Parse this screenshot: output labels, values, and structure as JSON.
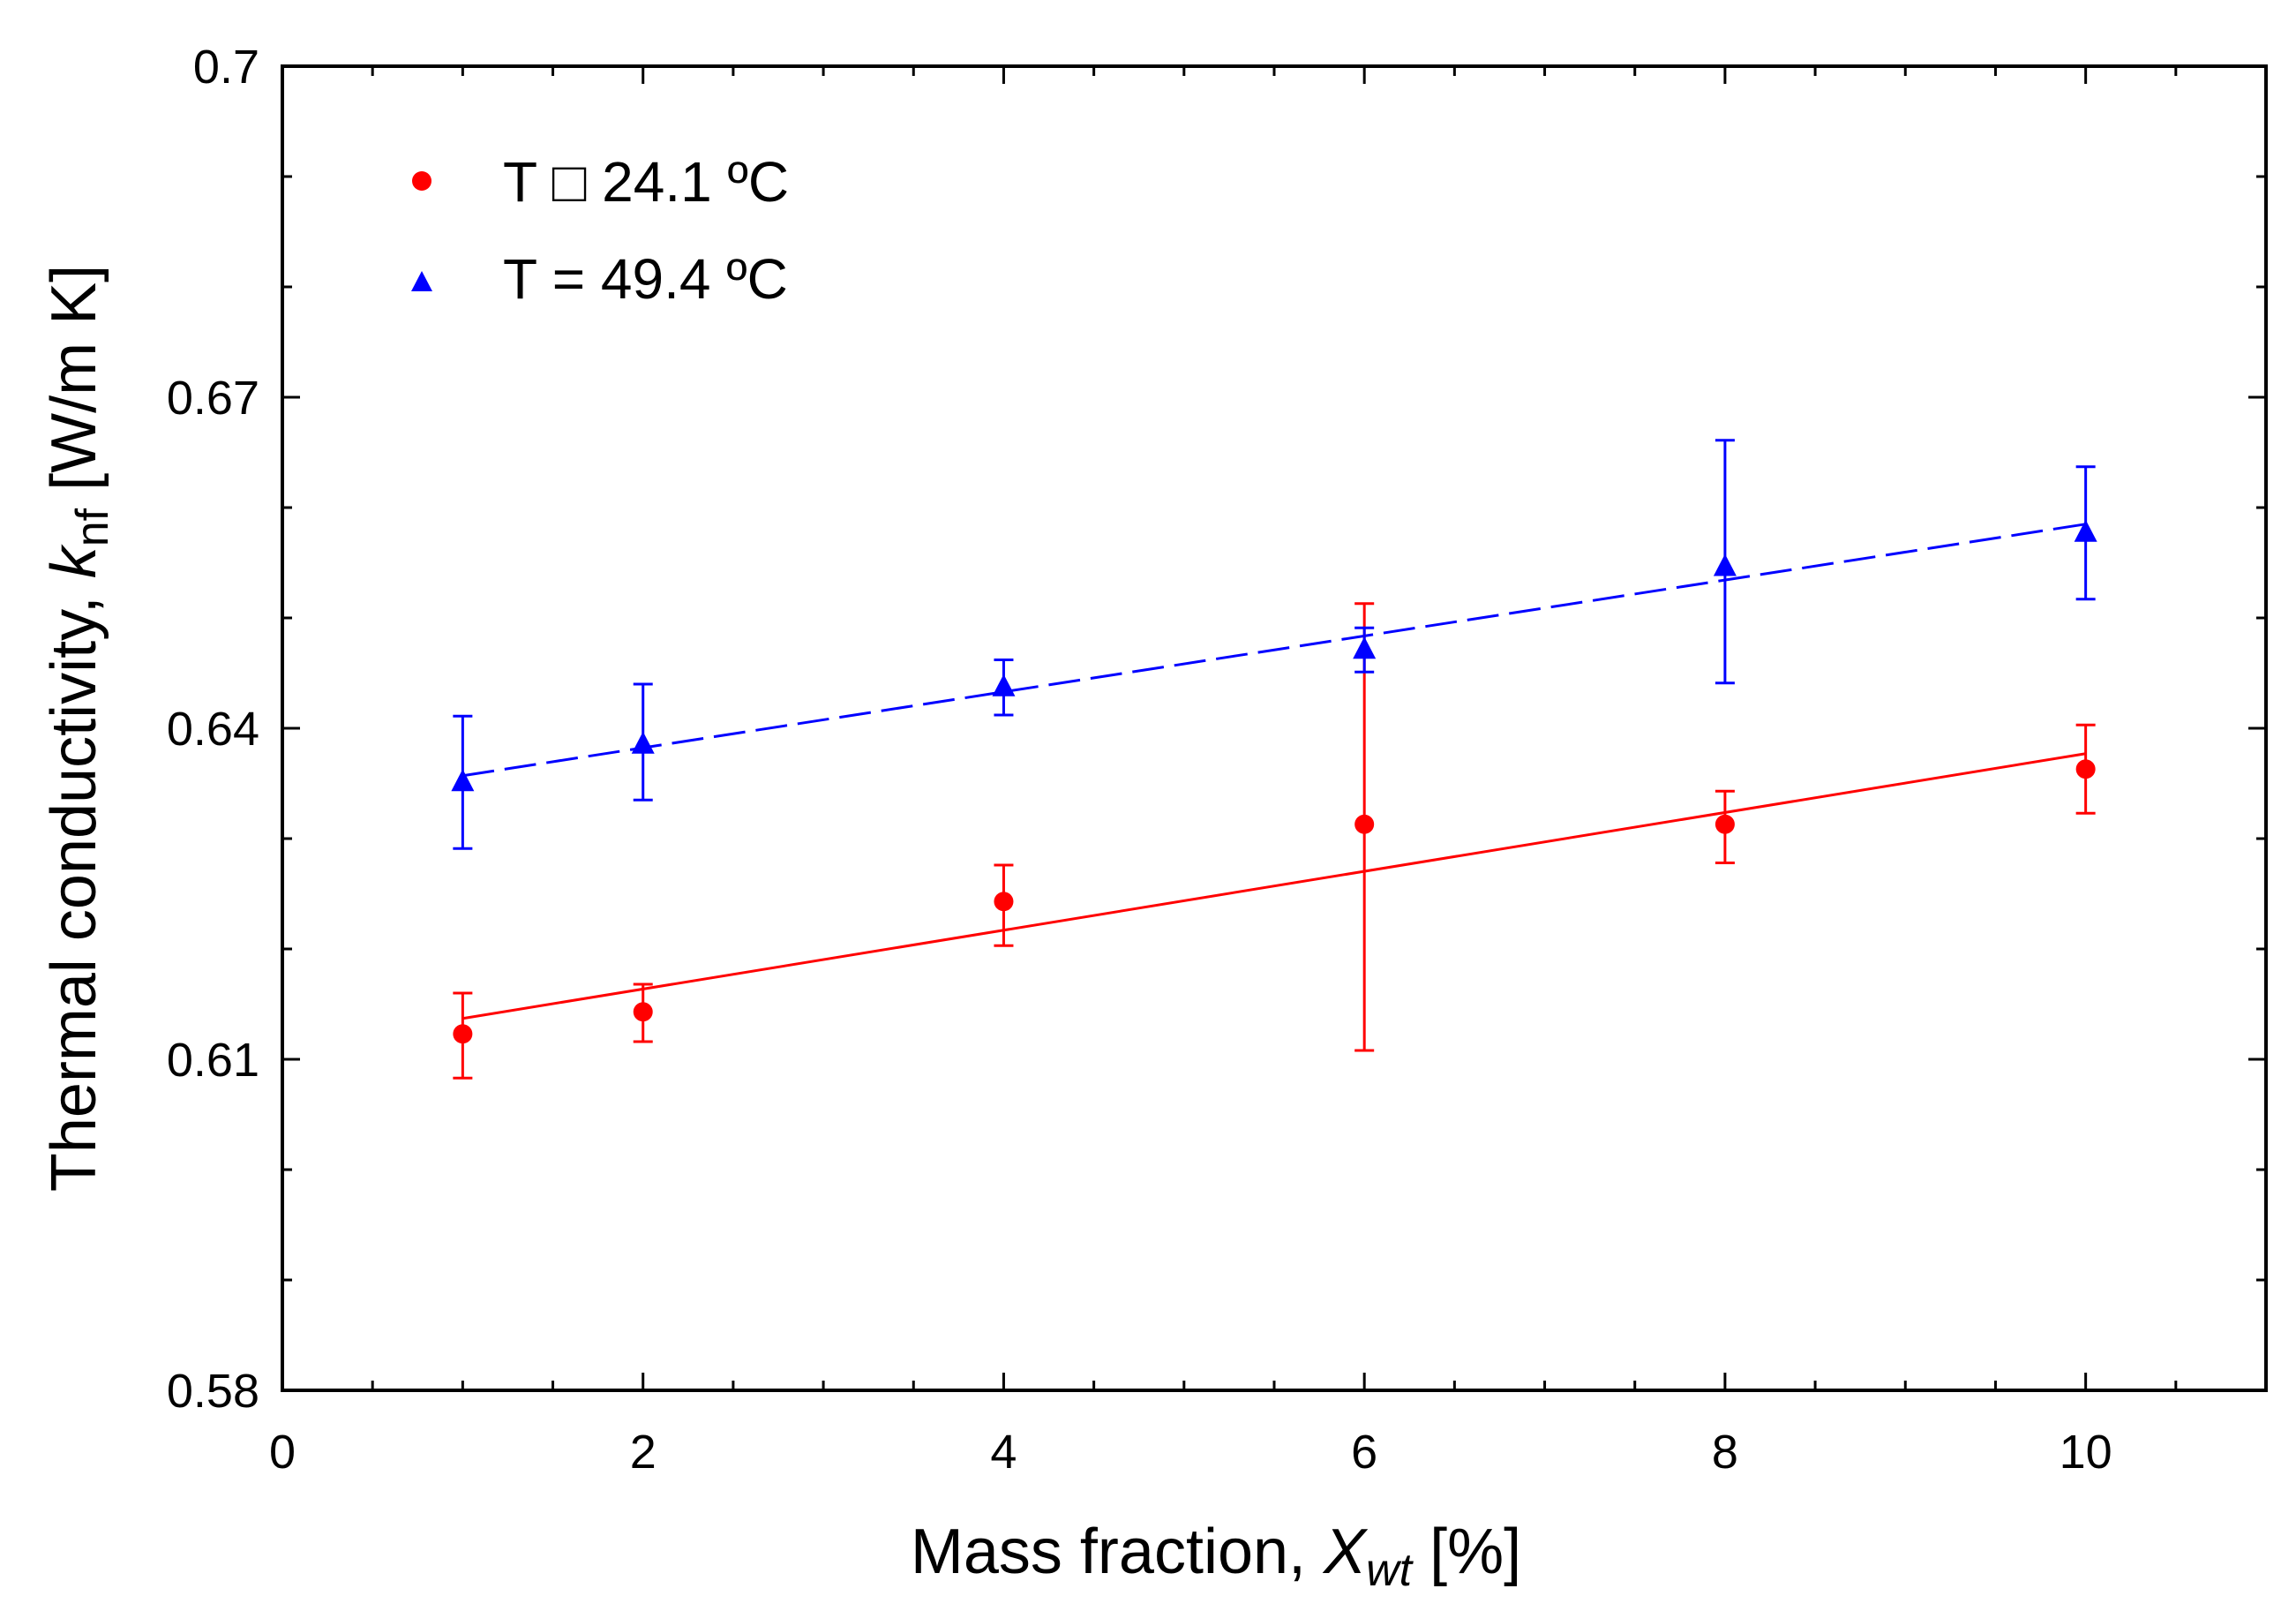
{
  "chart_data": {
    "type": "scatter",
    "title": "",
    "xlabel": {
      "prefix": "Mass fraction, ",
      "symbol": "X",
      "subscript": "wt",
      "suffix": " [%]"
    },
    "ylabel": {
      "prefix": "Thermal conductivity, ",
      "symbol": "k",
      "subscript": "nf",
      "suffix": " [W/m K]"
    },
    "xlim": [
      0,
      11
    ],
    "ylim": [
      0.58,
      0.7
    ],
    "x_ticks": [
      0,
      2,
      4,
      6,
      8,
      10
    ],
    "x_tick_labels": [
      "0",
      "2",
      "4",
      "6",
      "8",
      "10"
    ],
    "y_ticks": [
      0.58,
      0.61,
      0.64,
      0.67,
      0.7
    ],
    "y_tick_labels": [
      "0.58",
      "0.61",
      "0.64",
      "0.67",
      "0.7"
    ],
    "grid": false,
    "legend_position": "top-left",
    "series": [
      {
        "name": "T □ 24.1 ºC",
        "marker": "circle",
        "color": "#ff0000",
        "x": [
          1,
          2,
          4,
          6,
          8,
          10
        ],
        "y": [
          0.6123,
          0.6143,
          0.6243,
          0.6313,
          0.6313,
          0.6363
        ],
        "err_low": [
          0.004,
          0.0027,
          0.004,
          0.0205,
          0.0035,
          0.004
        ],
        "err_high": [
          0.0037,
          0.0025,
          0.0033,
          0.02,
          0.003,
          0.004
        ],
        "fit": {
          "style": "solid",
          "x": [
            1,
            10
          ],
          "y": [
            0.6137,
            0.6377
          ]
        }
      },
      {
        "name": "T = 49.4 ºC",
        "marker": "triangle",
        "color": "#0000ff",
        "x": [
          1,
          2,
          4,
          6,
          8,
          10
        ],
        "y": [
          0.6351,
          0.6385,
          0.6437,
          0.6471,
          0.6546,
          0.6577
        ],
        "err_low": [
          0.006,
          0.005,
          0.0025,
          0.002,
          0.0105,
          0.006
        ],
        "err_high": [
          0.006,
          0.0055,
          0.0025,
          0.002,
          0.0115,
          0.006
        ],
        "fit": {
          "style": "dashed",
          "x": [
            1,
            10
          ],
          "y": [
            0.6357,
            0.6585
          ]
        }
      }
    ]
  }
}
